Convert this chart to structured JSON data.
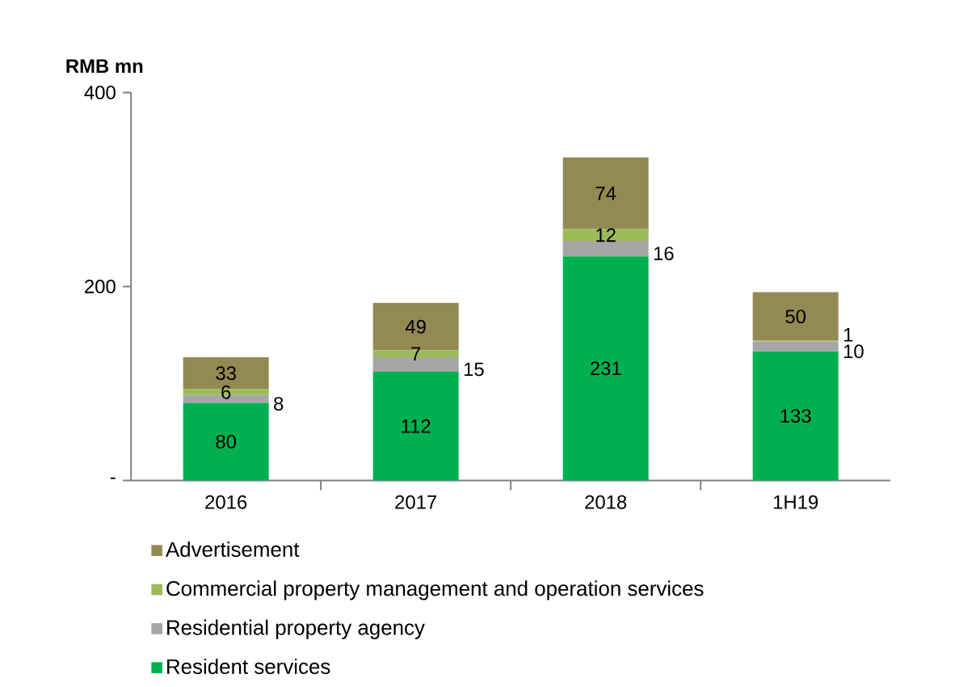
{
  "chart_data": {
    "type": "bar",
    "stacked": true,
    "ylabel": "RMB mn",
    "categories": [
      "2016",
      "2017",
      "2018",
      "1H19"
    ],
    "series": [
      {
        "name": "Resident services",
        "color": "#00b050",
        "values": [
          80,
          112,
          231,
          133
        ]
      },
      {
        "name": "Residential property agency",
        "color": "#a6a6a6",
        "values": [
          8,
          15,
          16,
          10
        ]
      },
      {
        "name": "Commercial property management and operation services",
        "color": "#9bbb59",
        "values": [
          6,
          7,
          12,
          1
        ]
      },
      {
        "name": "Advertisement",
        "color": "#938953",
        "values": [
          33,
          49,
          74,
          50
        ]
      }
    ],
    "ylim": [
      0,
      400
    ],
    "yticks": [
      {
        "value": 0,
        "label": "-"
      },
      200,
      400
    ],
    "data_labels": true,
    "legend": "bottom",
    "grid": false
  }
}
